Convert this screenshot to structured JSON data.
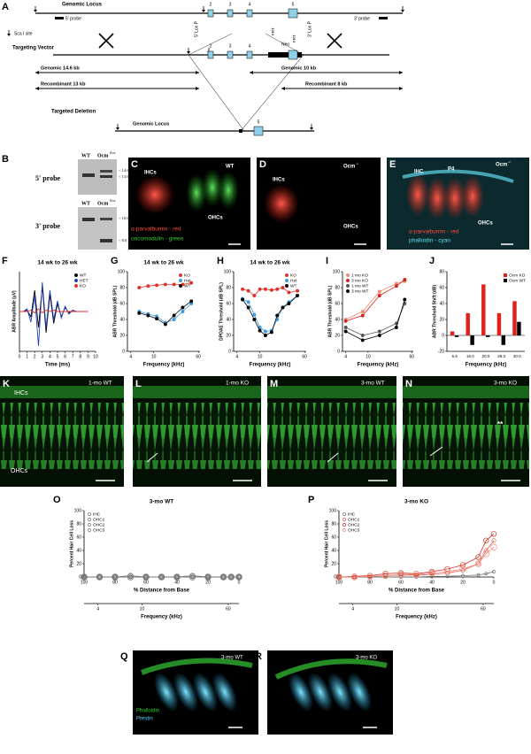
{
  "figure": {
    "panel_A": {
      "letter": "A",
      "genomic_locus": "Genomic Locus",
      "probe5": "5' probe",
      "probe3": "3' probe",
      "scai": "Sca I site",
      "targeting_vector": "Targeting Vector",
      "loxp5": "5' Lox P",
      "loxp3": "3' Lox P",
      "frt1": "FRT",
      "frt2": "FRT",
      "neo": "Neo",
      "genomic_14": "Genomic 14.6 kb",
      "genomic_10": "Genomic 10 kb",
      "recomb_13": "Recombinant 13 kb",
      "recomb_8": "Recombinant 8 kb",
      "targeted_deletion": "Targeted Deletion",
      "genomic_locus_2": "Genomic Locus",
      "exons": [
        "2",
        "3",
        "4",
        "5"
      ],
      "vector_exons": [
        "2",
        "3",
        "4"
      ],
      "deletion_exon": "5"
    },
    "panel_B": {
      "letter": "B",
      "probe5": "5' probe",
      "probe3": "3' probe",
      "wt_top": "WT",
      "flox_top": "Ocm",
      "flox_top_sup": "flox",
      "wt_bottom": "WT",
      "flox_bottom": "Ocm",
      "flox_bottom_sup": "flox",
      "bands_top": [
        "< 14.6",
        "< 13.0"
      ],
      "bands_bottom": [
        "< 10.0",
        "< 8.0"
      ]
    },
    "panel_C": {
      "letter": "C",
      "ihcs": "IHCs",
      "wt": "WT",
      "ohcs": "OHCs",
      "stain1": "α-parvalbumin - red",
      "stain2": "oncomodulin - green"
    },
    "panel_D": {
      "letter": "D",
      "ihcs": "IHCs",
      "genotype": "Ocm",
      "genotype_sup": "-/-",
      "ohcs": "OHCs"
    },
    "panel_E": {
      "letter": "E",
      "ihc": "IHC",
      "age": "P4",
      "genotype": "Ocm",
      "genotype_sup": "-/-",
      "ohcs": "OHCs",
      "stain1": "α-parvalbumin - red",
      "stain2": "phalloidin - cyan"
    },
    "panel_K": {
      "letter": "K",
      "label": "1-mo WT",
      "ihcs": "IHCs",
      "ohcs": "OHCs"
    },
    "panel_L": {
      "letter": "L",
      "label": "1-mo KO"
    },
    "panel_M": {
      "letter": "M",
      "label": "3-mo WT"
    },
    "panel_N": {
      "letter": "N",
      "label": "3-mo KO",
      "mark": "**"
    },
    "panel_Q": {
      "letter": "Q",
      "label": "3-mo WT",
      "stain1": "Phalloidin",
      "stain2": "Prestin"
    },
    "panel_R": {
      "letter": "R",
      "label": "3-mo KO"
    }
  },
  "chart_data": [
    {
      "letter": "F",
      "type": "line",
      "title": "14 wk to 26 wk",
      "x_label": "Time (ms)",
      "y_label": "ABR Amplitude (µV)",
      "x": [
        0,
        0.5,
        1,
        1.5,
        2,
        2.5,
        3,
        3.5,
        4,
        4.5,
        5,
        5.5,
        6,
        6.5,
        7,
        7.5,
        8,
        8.5,
        9
      ],
      "xlim": [
        0,
        10
      ],
      "xticks": [
        0,
        1,
        2,
        3,
        4,
        5,
        6,
        7,
        8,
        9,
        10
      ],
      "ylim": [
        -3,
        3
      ],
      "legend": "upper right",
      "series": [
        {
          "name": "WT",
          "color": "#000000",
          "values": [
            0,
            0,
            0.1,
            -0.4,
            1.6,
            -1.2,
            1.9,
            -1.6,
            1.3,
            -0.9,
            0.6,
            -0.4,
            0.3,
            -0.1,
            0.1,
            0,
            0,
            0,
            0
          ]
        },
        {
          "name": "HET",
          "color": "#1f3fbf",
          "values": [
            0,
            0,
            0.2,
            -0.8,
            1.2,
            -2.6,
            2.2,
            -1.2,
            1.6,
            -0.6,
            0.8,
            -0.5,
            0.4,
            -0.2,
            0.1,
            0,
            0,
            0,
            0
          ]
        },
        {
          "name": "KO",
          "color": "#e0302a",
          "values": [
            0,
            0,
            0,
            0.1,
            -0.1,
            0.2,
            -0.1,
            0.1,
            0,
            0.1,
            0,
            0,
            0,
            0,
            0,
            0,
            0,
            0,
            0
          ]
        }
      ]
    },
    {
      "letter": "G",
      "type": "line",
      "title": "14 wk to 26 wk",
      "x_label": "Frequency (kHz)",
      "y_label": "ABR Threshold (dB SPL)",
      "xscale": "log",
      "markers": true,
      "x": [
        5.6,
        8,
        11.3,
        16,
        22.6,
        32,
        45.2
      ],
      "xlim": [
        3.5,
        64
      ],
      "xticks": [
        4,
        10,
        60
      ],
      "ylim": [
        0,
        100
      ],
      "yticks": [
        0,
        20,
        40,
        60,
        80,
        100
      ],
      "legend": "upper right",
      "series": [
        {
          "name": "KO",
          "color": "#e0302a",
          "values": [
            80,
            82,
            83,
            84,
            84,
            84,
            86
          ]
        },
        {
          "name": "Het",
          "color": "#3a9be0",
          "values": [
            50,
            47,
            44,
            36,
            40,
            50,
            60
          ]
        },
        {
          "name": "WT",
          "color": "#000000",
          "values": [
            48,
            45,
            41,
            34,
            45,
            55,
            63
          ]
        }
      ]
    },
    {
      "letter": "H",
      "type": "line",
      "title": "14 wk to 26 wk",
      "x_label": "Frequency (kHz)",
      "y_label": "DPOAE Threshold (dB SPL)",
      "xscale": "log",
      "markers": true,
      "x": [
        5,
        6.3,
        8,
        10,
        12.5,
        16,
        20,
        25,
        32,
        45
      ],
      "xlim": [
        3.5,
        64
      ],
      "xticks": [
        4,
        10,
        60
      ],
      "ylim": [
        0,
        100
      ],
      "yticks": [
        0,
        20,
        40,
        60,
        80,
        100
      ],
      "legend": "upper right",
      "series": [
        {
          "name": "KO",
          "color": "#e0302a",
          "values": [
            78,
            76,
            70,
            78,
            78,
            77,
            78,
            80,
            74,
            76
          ]
        },
        {
          "name": "Het",
          "color": "#3a9be0",
          "values": [
            66,
            62,
            46,
            30,
            25,
            26,
            40,
            55,
            62,
            70
          ]
        },
        {
          "name": "WT",
          "color": "#000000",
          "values": [
            65,
            55,
            40,
            26,
            20,
            24,
            45,
            55,
            60,
            70
          ]
        }
      ]
    },
    {
      "letter": "I",
      "type": "line",
      "x_label": "Frequency (kHz)",
      "y_label": "ABR Threshold (dB SPL)",
      "xscale": "log",
      "markers": true,
      "x": [
        4,
        8,
        16,
        32,
        45
      ],
      "xlim": [
        3.5,
        64
      ],
      "xticks": [
        4,
        10,
        60
      ],
      "ylim": [
        0,
        100
      ],
      "yticks": [
        0,
        20,
        40,
        60,
        80,
        100
      ],
      "legend": "upper left",
      "series": [
        {
          "name": "1 mo KO",
          "color": "#f08a70",
          "values": [
            40,
            50,
            75,
            85,
            88
          ]
        },
        {
          "name": "3 mo KO",
          "color": "#d62020",
          "values": [
            38,
            45,
            70,
            82,
            90
          ]
        },
        {
          "name": "1 mo WT",
          "color": "#555555",
          "values": [
            30,
            20,
            25,
            35,
            60
          ]
        },
        {
          "name": "3 mo WT",
          "color": "#000000",
          "values": [
            25,
            14,
            20,
            30,
            65
          ]
        }
      ]
    },
    {
      "letter": "J",
      "type": "bar",
      "x_label": "Frequency (kHz)",
      "y_label": "ABR Threshold Shift (dB)",
      "categories": [
        "5.6",
        "16.0",
        "20.0",
        "28.3",
        "40.0"
      ],
      "ylim": [
        -20,
        80
      ],
      "yticks": [
        -20,
        0,
        20,
        40,
        60,
        80
      ],
      "legend": "upper right",
      "series": [
        {
          "name": "Ocm KO",
          "color": "#e0201a",
          "values": [
            5,
            28,
            64,
            28,
            43
          ]
        },
        {
          "name": "Ocm WT",
          "color": "#000000",
          "values": [
            -2,
            -12,
            -2,
            -12,
            17
          ]
        }
      ]
    },
    {
      "letter": "O",
      "type": "line",
      "title": "3-mo WT",
      "x_label": "% Distance from Base",
      "y_label": "Percent Hair Cell Loss",
      "markers": true,
      "x": [
        100,
        90,
        80,
        70,
        60,
        50,
        40,
        30,
        20,
        10,
        5,
        0
      ],
      "xlim": [
        100,
        0
      ],
      "xticks": [
        100,
        80,
        60,
        40,
        20,
        0
      ],
      "ylim": [
        0,
        100
      ],
      "yticks": [
        0,
        20,
        40,
        60,
        80,
        100
      ],
      "x2_label": "Frequency (kHz)",
      "x2scale": "log",
      "x2lim": [
        3,
        75
      ],
      "x2ticks": [
        4,
        10,
        60
      ],
      "legend": "upper left",
      "series": [
        {
          "name": "IHC",
          "color": "#777777",
          "values": [
            0,
            0,
            0,
            0,
            0,
            0,
            0,
            0,
            0,
            0,
            0,
            0
          ]
        },
        {
          "name": "OHC1",
          "color": "#777777",
          "values": [
            0,
            0,
            0,
            0,
            0,
            0,
            0,
            0,
            0,
            0,
            0,
            0
          ]
        },
        {
          "name": "OHC2",
          "color": "#777777",
          "values": [
            0,
            0,
            0,
            2,
            0,
            0,
            0,
            2,
            0,
            0,
            0,
            0
          ]
        },
        {
          "name": "OHC3",
          "color": "#777777",
          "values": [
            0,
            0,
            0,
            0,
            0,
            0,
            0,
            0,
            0,
            0,
            0,
            0
          ]
        }
      ]
    },
    {
      "letter": "P",
      "type": "line",
      "title": "3-mo KO",
      "x_label": "% Distance from Base",
      "y_label": "Percent Hair Cell Loss",
      "markers": true,
      "x": [
        100,
        90,
        80,
        70,
        60,
        50,
        40,
        30,
        20,
        10,
        5,
        0
      ],
      "xlim": [
        100,
        0
      ],
      "xticks": [
        100,
        80,
        60,
        40,
        20,
        0
      ],
      "ylim": [
        0,
        100
      ],
      "yticks": [
        0,
        20,
        40,
        60,
        80,
        100
      ],
      "x2_label": "Frequency (kHz)",
      "x2scale": "log",
      "x2lim": [
        3,
        75
      ],
      "x2ticks": [
        4,
        10,
        60
      ],
      "legend": "upper left",
      "series": [
        {
          "name": "IHC",
          "color": "#777777",
          "values": [
            0,
            0,
            0,
            0,
            0,
            0,
            1,
            1,
            2,
            3,
            5,
            8
          ]
        },
        {
          "name": "OHC1",
          "color": "#e06050",
          "values": [
            0,
            0,
            1,
            2,
            3,
            3,
            4,
            6,
            10,
            20,
            40,
            55
          ]
        },
        {
          "name": "OHC2",
          "color": "#d03020",
          "values": [
            0,
            1,
            2,
            5,
            6,
            5,
            8,
            12,
            18,
            30,
            55,
            65
          ]
        },
        {
          "name": "OHC3",
          "color": "#f09080",
          "values": [
            0,
            0,
            1,
            2,
            4,
            4,
            6,
            8,
            12,
            20,
            35,
            45
          ]
        }
      ]
    }
  ]
}
